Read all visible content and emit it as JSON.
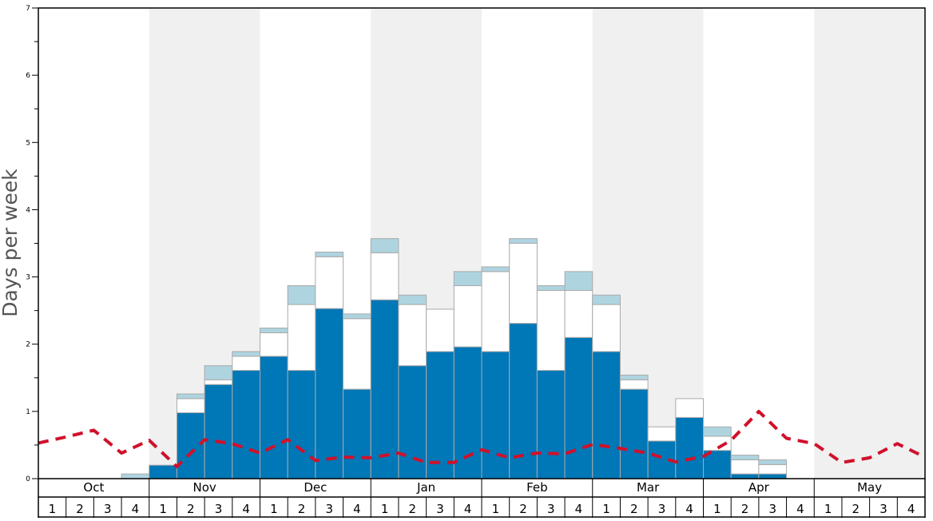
{
  "chart_data": {
    "type": "bar",
    "ylabel": "Days per week",
    "ylim": [
      0,
      7
    ],
    "yticks": [
      0,
      1,
      2,
      3,
      4,
      5,
      6,
      7
    ],
    "months": [
      "Oct",
      "Nov",
      "Dec",
      "Jan",
      "Feb",
      "Mar",
      "Apr",
      "May"
    ],
    "weeks_per_month": 4,
    "week_labels": [
      "1",
      "2",
      "3",
      "4"
    ],
    "stacked": true,
    "grid": false,
    "colors": {
      "bottom": "#0077b6",
      "middle": "#ffffff",
      "top": "#aed4e0",
      "bar_border": "#aaaaaa",
      "line": "#d0112b",
      "band": "#f0f0f0",
      "axis": "#000000"
    },
    "series": [
      {
        "values": [
          0,
          0,
          0,
          0,
          0.2,
          0.98,
          1.4,
          1.61,
          1.82,
          1.61,
          2.53,
          1.33,
          2.66,
          1.68,
          1.89,
          1.96,
          1.89,
          2.31,
          1.61,
          2.1,
          1.89,
          1.33,
          0.56,
          0.91,
          0.42,
          0.07,
          0.07,
          0,
          0,
          0,
          0,
          0
        ]
      },
      {
        "values": [
          0,
          0,
          0,
          0,
          0,
          0.21,
          0.07,
          0.21,
          0.35,
          0.98,
          0.77,
          1.05,
          0.7,
          0.91,
          0.63,
          0.91,
          1.19,
          1.19,
          1.19,
          0.7,
          0.7,
          0.14,
          0.21,
          0.28,
          0.21,
          0.21,
          0.14,
          0,
          0,
          0,
          0,
          0
        ]
      },
      {
        "values": [
          0,
          0,
          0,
          0.07,
          0,
          0.07,
          0.21,
          0.07,
          0.07,
          0.28,
          0.07,
          0.07,
          0.21,
          0.14,
          0,
          0.21,
          0.07,
          0.07,
          0.07,
          0.28,
          0.14,
          0.07,
          0,
          0,
          0.14,
          0.07,
          0.07,
          0,
          0,
          0,
          0,
          0
        ]
      }
    ],
    "line_values": [
      0.53,
      0.62,
      0.72,
      0.38,
      0.57,
      0.18,
      0.58,
      0.52,
      0.38,
      0.58,
      0.27,
      0.32,
      0.31,
      0.38,
      0.24,
      0.24,
      0.43,
      0.31,
      0.38,
      0.37,
      0.51,
      0.45,
      0.38,
      0.25,
      0.33,
      0.57,
      1.0,
      0.6,
      0.52,
      0.24,
      0.31,
      0.52,
      0.32
    ]
  }
}
